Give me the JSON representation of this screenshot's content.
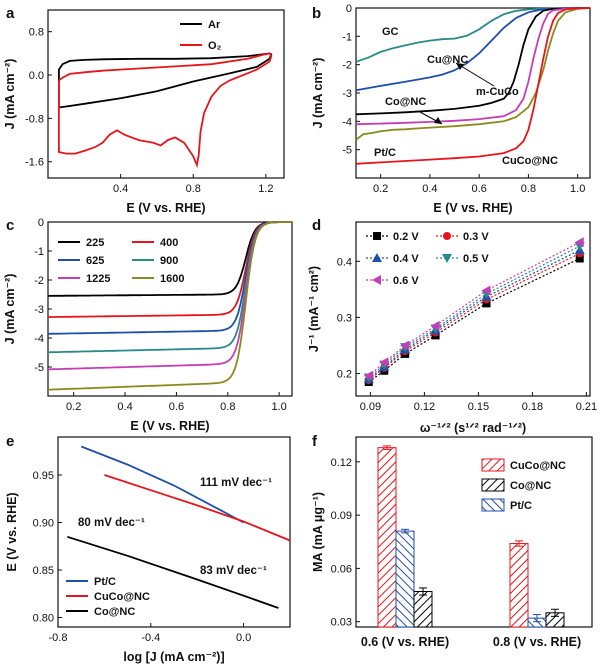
{
  "chart_data": [
    {
      "panel": "a",
      "type": "line",
      "xlabel": "E (V vs. RHE)",
      "ylabel": "J (mA cm⁻²)",
      "xlim": [
        0,
        1.3
      ],
      "ylim": [
        -1.9,
        1.2
      ],
      "xticks": [
        "0.4",
        "0.8",
        "1.2"
      ],
      "yticks": [
        "-1.6",
        "-0.8",
        "0.0",
        "0.8"
      ],
      "legend_position": "top-right",
      "series": [
        {
          "name": "Ar",
          "color": "#000000",
          "x": [
            0.06,
            0.06,
            0.08,
            0.12,
            0.2,
            0.3,
            0.5,
            0.7,
            0.9,
            1.1,
            1.18,
            1.22,
            1.23,
            1.22,
            1.15,
            1.0,
            0.8,
            0.6,
            0.4,
            0.2,
            0.1,
            0.06
          ],
          "y": [
            -0.6,
            0.1,
            0.2,
            0.26,
            0.28,
            0.29,
            0.3,
            0.3,
            0.31,
            0.35,
            0.38,
            0.4,
            0.38,
            0.3,
            0.15,
            0.03,
            -0.12,
            -0.3,
            -0.43,
            -0.53,
            -0.58,
            -0.6
          ]
        },
        {
          "name": "O₂",
          "color": "#e8141b",
          "x": [
            0.06,
            0.06,
            0.08,
            0.12,
            0.2,
            0.3,
            0.5,
            0.7,
            0.9,
            1.1,
            1.18,
            1.22,
            1.23,
            1.22,
            1.15,
            1.0,
            0.95,
            0.9,
            0.86,
            0.84,
            0.83,
            0.82,
            0.8,
            0.75,
            0.7,
            0.66,
            0.62,
            0.58,
            0.5,
            0.42,
            0.38,
            0.34,
            0.3,
            0.26,
            0.2,
            0.15,
            0.1,
            0.06
          ],
          "y": [
            -1.4,
            -0.1,
            -0.05,
            0.02,
            0.05,
            0.08,
            0.12,
            0.16,
            0.2,
            0.3,
            0.37,
            0.4,
            0.35,
            0.25,
            0.1,
            -0.1,
            -0.2,
            -0.4,
            -0.7,
            -1.05,
            -1.48,
            -1.66,
            -1.5,
            -1.25,
            -1.15,
            -1.2,
            -1.3,
            -1.25,
            -1.2,
            -1.1,
            -1.02,
            -1.1,
            -1.25,
            -1.33,
            -1.4,
            -1.45,
            -1.45,
            -1.42
          ]
        }
      ]
    },
    {
      "panel": "b",
      "type": "line",
      "xlabel": "E (V vs. RHE)",
      "ylabel": "J (mA cm⁻²)",
      "xlim": [
        0.1,
        1.05
      ],
      "ylim": [
        -6,
        0
      ],
      "xticks": [
        "0.2",
        "0.4",
        "0.6",
        "0.8",
        "1.0"
      ],
      "yticks": [
        "-5",
        "-4",
        "-3",
        "-2",
        "-1",
        "0"
      ],
      "series": [
        {
          "name": "GC",
          "color": "#2a8a8a",
          "x": [
            0.1,
            0.15,
            0.2,
            0.25,
            0.3,
            0.35,
            0.4,
            0.45,
            0.5,
            0.55,
            0.6,
            0.65,
            0.7,
            0.75,
            0.8,
            0.85,
            0.9,
            1.0,
            1.05
          ],
          "y": [
            -1.9,
            -1.75,
            -1.55,
            -1.42,
            -1.32,
            -1.22,
            -1.15,
            -1.1,
            -1.08,
            -0.98,
            -0.75,
            -0.45,
            -0.22,
            -0.1,
            -0.05,
            -0.03,
            -0.02,
            -0.01,
            0
          ]
        },
        {
          "name": "Cu@NC",
          "color": "#1f4fa8",
          "x": [
            0.1,
            0.2,
            0.3,
            0.4,
            0.45,
            0.5,
            0.55,
            0.6,
            0.65,
            0.7,
            0.75,
            0.8,
            0.85,
            0.9,
            0.95,
            1.05
          ],
          "y": [
            -2.9,
            -2.75,
            -2.6,
            -2.45,
            -2.35,
            -2.2,
            -1.95,
            -1.6,
            -1.15,
            -0.7,
            -0.35,
            -0.15,
            -0.06,
            -0.02,
            -0.01,
            0
          ]
        },
        {
          "name": "m-CuCo",
          "color": "#000000",
          "x": [
            0.1,
            0.2,
            0.3,
            0.4,
            0.5,
            0.6,
            0.65,
            0.7,
            0.72,
            0.74,
            0.76,
            0.78,
            0.8,
            0.83,
            0.86,
            0.9,
            0.95,
            1.05
          ],
          "y": [
            -3.75,
            -3.72,
            -3.68,
            -3.63,
            -3.56,
            -3.45,
            -3.35,
            -3.2,
            -3.0,
            -2.6,
            -2.0,
            -1.3,
            -0.75,
            -0.3,
            -0.1,
            -0.03,
            -0.01,
            0
          ]
        },
        {
          "name": "Co@NC",
          "color": "#c23fb7",
          "x": [
            0.1,
            0.2,
            0.3,
            0.4,
            0.5,
            0.6,
            0.7,
            0.75,
            0.78,
            0.8,
            0.82,
            0.84,
            0.86,
            0.88,
            0.9,
            0.95,
            1.05
          ],
          "y": [
            -4.1,
            -4.08,
            -4.05,
            -4.02,
            -3.98,
            -3.92,
            -3.82,
            -3.6,
            -3.2,
            -2.6,
            -1.8,
            -1.1,
            -0.55,
            -0.2,
            -0.08,
            -0.02,
            0
          ]
        },
        {
          "name": "Pt/C",
          "color": "#8a8a1e",
          "x": [
            0.1,
            0.13,
            0.16,
            0.2,
            0.25,
            0.3,
            0.35,
            0.4,
            0.5,
            0.6,
            0.7,
            0.75,
            0.8,
            0.83,
            0.86,
            0.88,
            0.9,
            0.92,
            0.95,
            1.0,
            1.05
          ],
          "y": [
            -4.65,
            -4.45,
            -4.42,
            -4.35,
            -4.3,
            -4.28,
            -4.25,
            -4.22,
            -4.17,
            -4.1,
            -4.0,
            -3.85,
            -3.5,
            -3.0,
            -2.2,
            -1.5,
            -0.9,
            -0.45,
            -0.15,
            -0.03,
            0
          ]
        },
        {
          "name": "CuCo@NC",
          "color": "#e8141b",
          "x": [
            0.1,
            0.2,
            0.3,
            0.4,
            0.5,
            0.6,
            0.7,
            0.75,
            0.78,
            0.8,
            0.82,
            0.84,
            0.86,
            0.88,
            0.9,
            0.92,
            0.95,
            1.0,
            1.05
          ],
          "y": [
            -5.5,
            -5.45,
            -5.4,
            -5.35,
            -5.3,
            -5.24,
            -5.12,
            -4.95,
            -4.7,
            -4.3,
            -3.6,
            -2.7,
            -1.8,
            -1.0,
            -0.45,
            -0.18,
            -0.05,
            -0.01,
            0
          ]
        }
      ]
    },
    {
      "panel": "c",
      "type": "line",
      "xlabel": "E (V vs. RHE)",
      "ylabel": "J (mA cm⁻²)",
      "xlim": [
        0.1,
        1.05
      ],
      "ylim": [
        -6,
        0
      ],
      "xticks": [
        "0.2",
        "0.4",
        "0.6",
        "0.8",
        "1.0"
      ],
      "yticks": [
        "-5",
        "-4",
        "-3",
        "-2",
        "-1",
        "0"
      ],
      "legend_position": "top-left",
      "series": [
        {
          "name": "225",
          "color": "#000000",
          "limit": -2.5
        },
        {
          "name": "400",
          "color": "#e8141b",
          "limit": -3.2
        },
        {
          "name": "625",
          "color": "#1f4fa8",
          "limit": -3.75
        },
        {
          "name": "900",
          "color": "#2a8a8a",
          "limit": -4.35
        },
        {
          "name": "1225",
          "color": "#c23fb7",
          "limit": -4.9
        },
        {
          "name": "1600",
          "color": "#8a8a1e",
          "limit": -5.55
        }
      ]
    },
    {
      "panel": "d",
      "type": "scatter",
      "xlabel": "ω⁻¹ᐟ² (s¹ᐟ² rad⁻¹ᐟ²)",
      "ylabel": "J⁻¹ (mA⁻¹ cm²)",
      "xlim": [
        0.082,
        0.212
      ],
      "ylim": [
        0.16,
        0.47
      ],
      "xticks": [
        "0.09",
        "0.12",
        "0.15",
        "0.18",
        "0.21"
      ],
      "yticks": [
        "0.2",
        "0.3",
        "0.4"
      ],
      "x": [
        0.0891,
        0.0977,
        0.1093,
        0.1262,
        0.1545,
        0.2063
      ],
      "series": [
        {
          "name": "0.2 V",
          "color": "#000000",
          "marker": "square",
          "values": [
            0.185,
            0.205,
            0.235,
            0.268,
            0.325,
            0.405
          ]
        },
        {
          "name": "0.3 V",
          "color": "#e8141b",
          "marker": "circle",
          "values": [
            0.188,
            0.21,
            0.24,
            0.273,
            0.332,
            0.414
          ]
        },
        {
          "name": "0.4 V",
          "color": "#1f4fa8",
          "marker": "triangle-up",
          "values": [
            0.19,
            0.212,
            0.243,
            0.277,
            0.337,
            0.42
          ]
        },
        {
          "name": "0.5 V",
          "color": "#2a8a8a",
          "marker": "triangle-down",
          "values": [
            0.193,
            0.216,
            0.247,
            0.28,
            0.342,
            0.427
          ]
        },
        {
          "name": "0.6 V",
          "color": "#c23fb7",
          "marker": "triangle-left",
          "values": [
            0.196,
            0.22,
            0.25,
            0.285,
            0.348,
            0.434
          ]
        }
      ]
    },
    {
      "panel": "e",
      "type": "line",
      "xlabel": "log [J (mA cm⁻²)]",
      "ylabel": "E (V vs. RHE)",
      "xlim": [
        -0.8,
        0.2
      ],
      "ylim": [
        0.79,
        0.99
      ],
      "xticks": [
        "-0.8",
        "-0.4",
        "0.0"
      ],
      "yticks": [
        "0.80",
        "0.85",
        "0.90",
        "0.95"
      ],
      "legend_position": "bottom-left",
      "annotations": [
        "111 mV dec⁻¹",
        "80 mV dec⁻¹",
        "83 mV dec⁻¹"
      ],
      "series": [
        {
          "name": "Pt/C",
          "color": "#1f4fa8",
          "x": [
            -0.7,
            -0.5,
            -0.3,
            -0.1,
            0.0
          ],
          "y": [
            0.98,
            0.961,
            0.939,
            0.913,
            0.9
          ]
        },
        {
          "name": "CuCo@NC",
          "color": "#e8141b",
          "x": [
            -0.6,
            -0.4,
            -0.2,
            0.0,
            0.2
          ],
          "y": [
            0.95,
            0.934,
            0.918,
            0.901,
            0.881
          ]
        },
        {
          "name": "Co@NC",
          "color": "#000000",
          "x": [
            -0.76,
            -0.5,
            -0.2,
            0.0,
            0.15
          ],
          "y": [
            0.885,
            0.865,
            0.84,
            0.823,
            0.81
          ]
        }
      ]
    },
    {
      "panel": "f",
      "type": "bar",
      "xlabel": "",
      "ylabel": "MA (mA μg⁻¹)",
      "ylim": [
        0.027,
        0.134
      ],
      "yticks": [
        "0.03",
        "0.06",
        "0.09",
        "0.12"
      ],
      "categories": [
        "0.6 (V vs. RHE)",
        "0.8 (V vs. RHE)"
      ],
      "legend_position": "top-right",
      "series": [
        {
          "name": "CuCo@NC",
          "color": "#e8141b",
          "values": [
            0.128,
            0.074
          ],
          "errors": [
            0.001,
            0.0015
          ]
        },
        {
          "name": "Co@NC",
          "color": "#000000",
          "values": [
            0.047,
            0.035
          ],
          "errors": [
            0.002,
            0.002
          ]
        },
        {
          "name": "Pt/C",
          "color": "#1f4fa8",
          "values": [
            0.081,
            0.032
          ],
          "errors": [
            0.001,
            0.002
          ]
        }
      ]
    }
  ]
}
